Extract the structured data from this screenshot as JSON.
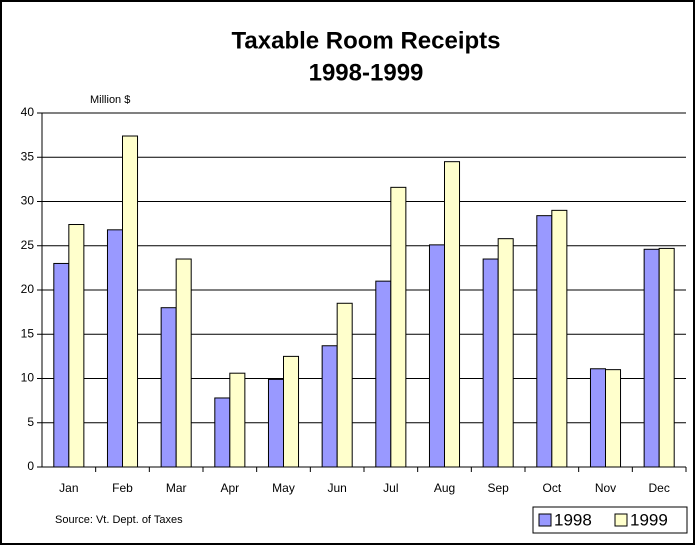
{
  "chart_data": {
    "type": "bar",
    "title": "Taxable Room Receipts",
    "subtitle": "1998-1999",
    "y_label": "Million $",
    "source": "Source: Vt. Dept. of Taxes",
    "categories": [
      "Jan",
      "Feb",
      "Mar",
      "Apr",
      "May",
      "Jun",
      "Jul",
      "Aug",
      "Sep",
      "Oct",
      "Nov",
      "Dec"
    ],
    "series": [
      {
        "name": "1998",
        "color": "#9999ff",
        "values": [
          23.0,
          26.8,
          18.0,
          7.8,
          9.9,
          13.7,
          21.0,
          25.1,
          23.5,
          28.4,
          11.1,
          24.6
        ]
      },
      {
        "name": "1999",
        "color": "#ffffcc",
        "values": [
          27.4,
          37.4,
          23.5,
          10.6,
          12.5,
          18.5,
          31.6,
          34.5,
          25.8,
          29.0,
          11.0,
          24.7
        ]
      }
    ],
    "ylim": [
      0,
      40
    ],
    "yticks": [
      0,
      5,
      10,
      15,
      20,
      25,
      30,
      35,
      40
    ],
    "grid": true,
    "legend": "bottom-right"
  }
}
